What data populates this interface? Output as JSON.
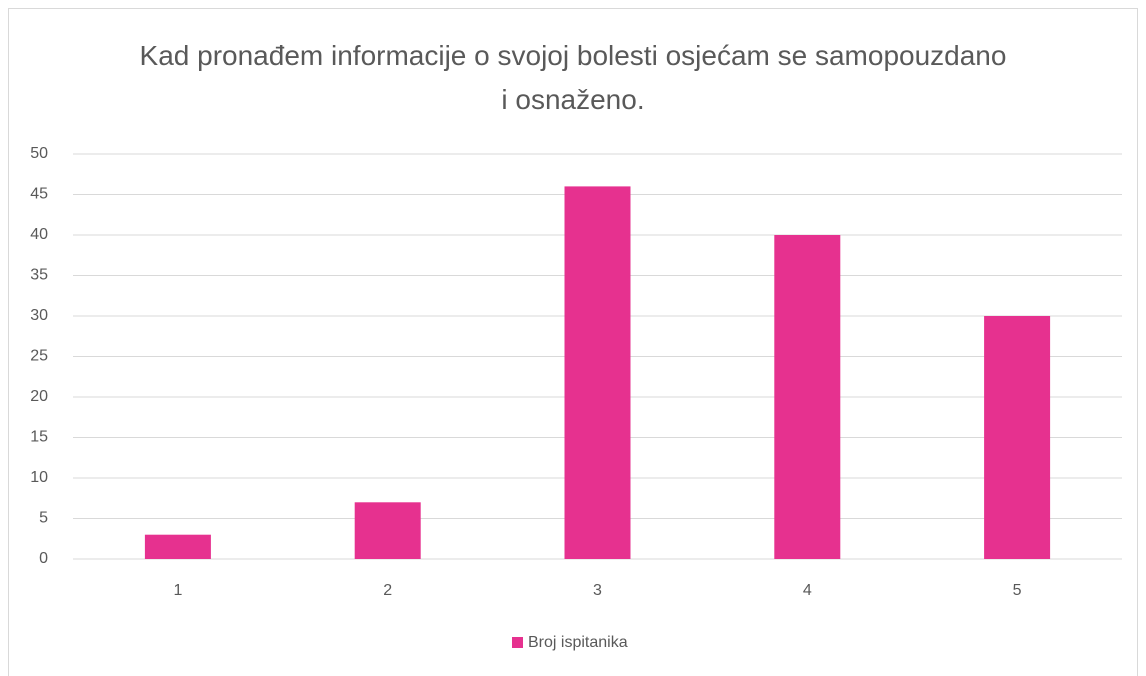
{
  "chart_data": {
    "type": "bar",
    "title": "Kad pronađem informacije o svojoj bolesti osjećam se samopouzdano i osnaženo.",
    "categories": [
      "1",
      "2",
      "3",
      "4",
      "5"
    ],
    "series": [
      {
        "name": "Broj ispitanika",
        "color": "#e6318f",
        "values": [
          3,
          7,
          46,
          40,
          30
        ]
      }
    ],
    "ylim": [
      0,
      50
    ],
    "yticks": [
      0,
      5,
      10,
      15,
      20,
      25,
      30,
      35,
      40,
      45,
      50
    ],
    "grid": true,
    "legend": "bottom"
  }
}
